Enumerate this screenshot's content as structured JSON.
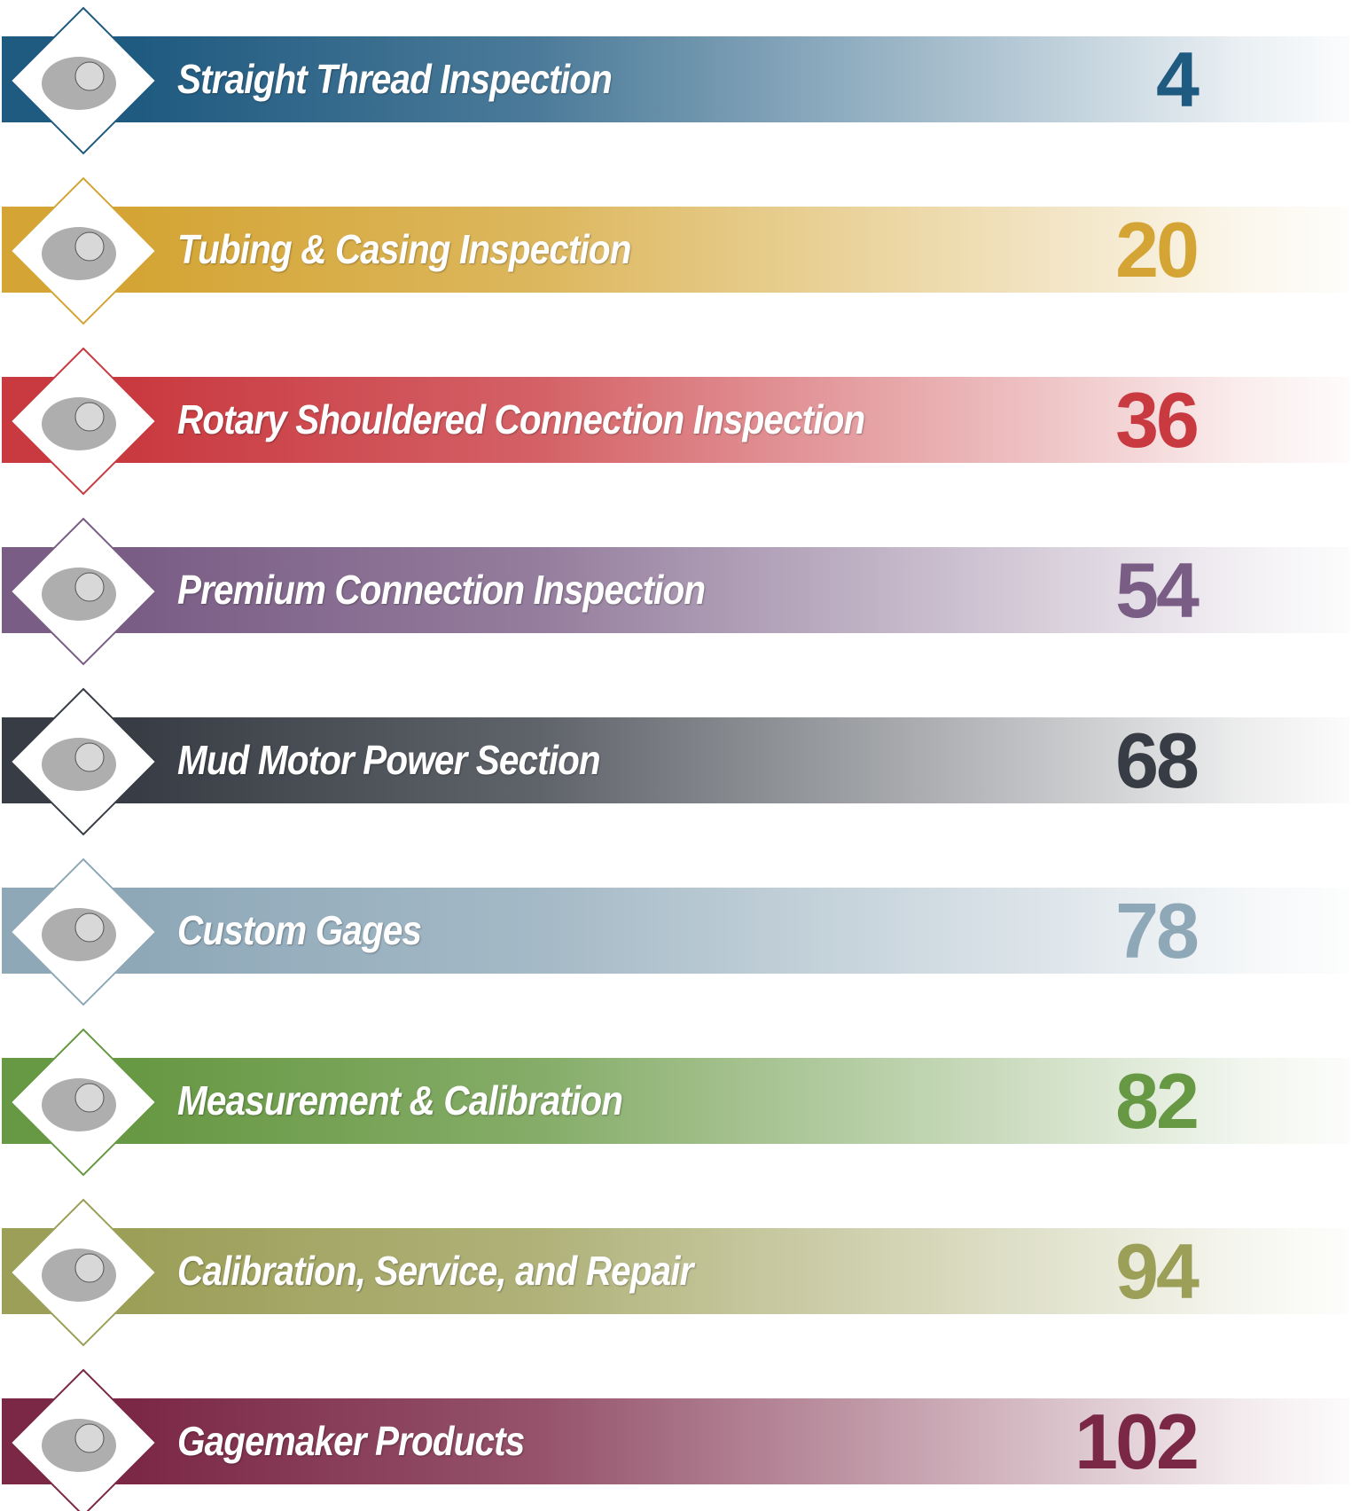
{
  "entries": [
    {
      "title": "Straight Thread Inspection",
      "page": 4,
      "color": "#1f5a80"
    },
    {
      "title": "Tubing & Casing Inspection",
      "page": 20,
      "color": "#d4a535"
    },
    {
      "title": "Rotary Shouldered Connection Inspection",
      "page": 36,
      "color": "#c93a40"
    },
    {
      "title": "Premium Connection Inspection",
      "page": 54,
      "color": "#7a5d85"
    },
    {
      "title": "Mud Motor Power Section",
      "page": 68,
      "color": "#383d45"
    },
    {
      "title": "Custom Gages",
      "page": 78,
      "color": "#8ea8b8"
    },
    {
      "title": "Measurement & Calibration",
      "page": 82,
      "color": "#679843"
    },
    {
      "title": "Calibration, Service, and Repair",
      "page": 94,
      "color": "#9c9f58"
    },
    {
      "title": "Gagemaker Products",
      "page": 102,
      "color": "#7b2846"
    }
  ]
}
